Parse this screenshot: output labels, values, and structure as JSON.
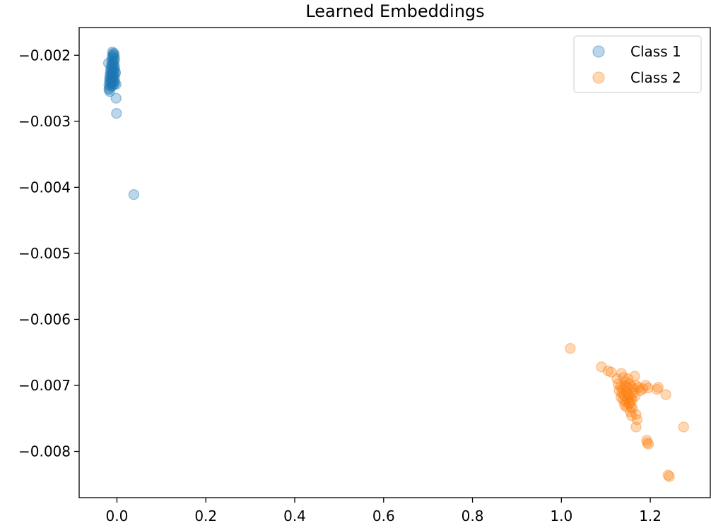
{
  "chart_data": {
    "type": "scatter",
    "title": "Learned Embeddings",
    "xlabel": "",
    "ylabel": "",
    "xlim": [
      -0.085,
      1.335
    ],
    "ylim": [
      -0.0087,
      -0.00158
    ],
    "xticks": [
      0.0,
      0.2,
      0.4,
      0.6,
      0.8,
      1.0,
      1.2
    ],
    "xtick_labels": [
      "0.0",
      "0.2",
      "0.4",
      "0.6",
      "0.8",
      "1.0",
      "1.2"
    ],
    "yticks": [
      -0.002,
      -0.003,
      -0.004,
      -0.005,
      -0.006,
      -0.007,
      -0.008
    ],
    "ytick_labels": [
      "−0.002",
      "−0.003",
      "−0.004",
      "−0.005",
      "−0.006",
      "−0.007",
      "−0.008"
    ],
    "grid": false,
    "legend_position": "top-right",
    "marker_alpha": 0.3,
    "series": [
      {
        "name": "Class 1",
        "color": "#1f77b4",
        "points": [
          [
            -0.01,
            -0.00195
          ],
          [
            -0.008,
            -0.00197
          ],
          [
            -0.006,
            -0.00198
          ],
          [
            -0.009,
            -0.002
          ],
          [
            -0.007,
            -0.00202
          ],
          [
            -0.011,
            -0.00203
          ],
          [
            -0.005,
            -0.00205
          ],
          [
            -0.008,
            -0.00207
          ],
          [
            -0.012,
            -0.00208
          ],
          [
            -0.006,
            -0.0021
          ],
          [
            -0.009,
            -0.00212
          ],
          [
            -0.01,
            -0.00214
          ],
          [
            -0.007,
            -0.00215
          ],
          [
            -0.013,
            -0.00216
          ],
          [
            -0.005,
            -0.00218
          ],
          [
            -0.011,
            -0.00219
          ],
          [
            -0.008,
            -0.0022
          ],
          [
            -0.014,
            -0.00221
          ],
          [
            -0.006,
            -0.00222
          ],
          [
            -0.012,
            -0.00224
          ],
          [
            -0.009,
            -0.00225
          ],
          [
            -0.015,
            -0.00226
          ],
          [
            -0.004,
            -0.00227
          ],
          [
            -0.01,
            -0.00228
          ],
          [
            -0.013,
            -0.00229
          ],
          [
            -0.007,
            -0.0023
          ],
          [
            -0.016,
            -0.00231
          ],
          [
            -0.011,
            -0.00232
          ],
          [
            -0.008,
            -0.00233
          ],
          [
            -0.014,
            -0.00234
          ],
          [
            -0.005,
            -0.00235
          ],
          [
            -0.012,
            -0.00236
          ],
          [
            -0.017,
            -0.00237
          ],
          [
            -0.009,
            -0.00238
          ],
          [
            -0.015,
            -0.00239
          ],
          [
            -0.006,
            -0.0024
          ],
          [
            -0.011,
            -0.00241
          ],
          [
            -0.016,
            -0.00242
          ],
          [
            -0.013,
            -0.00243
          ],
          [
            -0.008,
            -0.00244
          ],
          [
            -0.018,
            -0.00245
          ],
          [
            -0.01,
            -0.00246
          ],
          [
            -0.014,
            -0.00247
          ],
          [
            -0.005,
            -0.00243
          ],
          [
            -0.019,
            -0.00212
          ],
          [
            -0.003,
            -0.00226
          ],
          [
            -0.002,
            -0.00244
          ],
          [
            -0.017,
            -0.0025
          ],
          [
            -0.016,
            -0.00255
          ],
          [
            -0.018,
            -0.00252
          ],
          [
            -0.002,
            -0.00265
          ],
          [
            -0.001,
            -0.00288
          ],
          [
            0.038,
            -0.00411
          ]
        ]
      },
      {
        "name": "Class 2",
        "color": "#ff7f0e",
        "points": [
          [
            1.02,
            -0.00644
          ],
          [
            1.09,
            -0.00672
          ],
          [
            1.105,
            -0.00678
          ],
          [
            1.112,
            -0.0068
          ],
          [
            1.125,
            -0.0069
          ],
          [
            1.135,
            -0.00682
          ],
          [
            1.14,
            -0.00688
          ],
          [
            1.145,
            -0.00695
          ],
          [
            1.15,
            -0.0069
          ],
          [
            1.128,
            -0.00698
          ],
          [
            1.133,
            -0.00702
          ],
          [
            1.138,
            -0.00705
          ],
          [
            1.143,
            -0.007
          ],
          [
            1.148,
            -0.00704
          ],
          [
            1.153,
            -0.00698
          ],
          [
            1.158,
            -0.00702
          ],
          [
            1.163,
            -0.00706
          ],
          [
            1.168,
            -0.007
          ],
          [
            1.173,
            -0.00703
          ],
          [
            1.178,
            -0.00708
          ],
          [
            1.13,
            -0.00708
          ],
          [
            1.136,
            -0.00712
          ],
          [
            1.141,
            -0.00715
          ],
          [
            1.146,
            -0.0071
          ],
          [
            1.151,
            -0.00714
          ],
          [
            1.156,
            -0.00718
          ],
          [
            1.161,
            -0.00712
          ],
          [
            1.166,
            -0.00716
          ],
          [
            1.134,
            -0.00718
          ],
          [
            1.139,
            -0.00722
          ],
          [
            1.144,
            -0.00725
          ],
          [
            1.149,
            -0.0072
          ],
          [
            1.154,
            -0.00726
          ],
          [
            1.159,
            -0.00722
          ],
          [
            1.142,
            -0.0073
          ],
          [
            1.147,
            -0.00733
          ],
          [
            1.152,
            -0.00728
          ],
          [
            1.157,
            -0.00732
          ],
          [
            1.165,
            -0.00686
          ],
          [
            1.183,
            -0.00705
          ],
          [
            1.19,
            -0.007
          ],
          [
            1.195,
            -0.00704
          ],
          [
            1.215,
            -0.00706
          ],
          [
            1.218,
            -0.00703
          ],
          [
            1.235,
            -0.00714
          ],
          [
            1.155,
            -0.0074
          ],
          [
            1.16,
            -0.00735
          ],
          [
            1.158,
            -0.00746
          ],
          [
            1.168,
            -0.00744
          ],
          [
            1.17,
            -0.00752
          ],
          [
            1.168,
            -0.00763
          ],
          [
            1.192,
            -0.00783
          ],
          [
            1.193,
            -0.00787
          ],
          [
            1.196,
            -0.00789
          ],
          [
            1.275,
            -0.00763
          ],
          [
            1.24,
            -0.00836
          ],
          [
            1.243,
            -0.00838
          ]
        ]
      }
    ]
  }
}
